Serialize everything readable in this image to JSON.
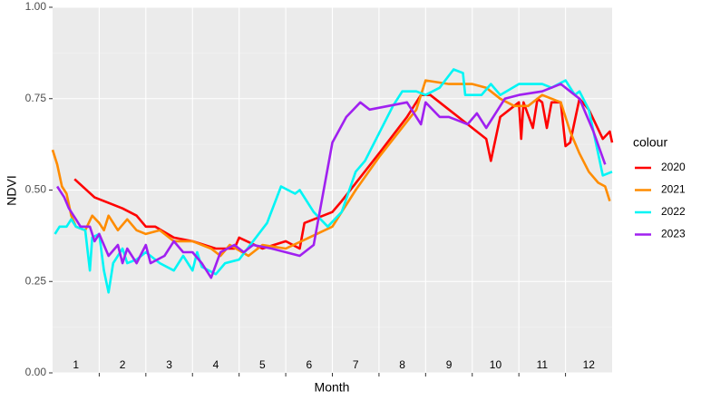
{
  "chart_data": {
    "type": "line",
    "x_label": "Month",
    "y_label": "NDVI",
    "legend_title": "colour",
    "legend_position": "right",
    "grid": true,
    "categories": [
      "1",
      "2",
      "3",
      "4",
      "5",
      "6",
      "7",
      "8",
      "9",
      "10",
      "11",
      "12"
    ],
    "xlim": [
      0,
      12
    ],
    "xticks": [
      1,
      2,
      3,
      4,
      5,
      6,
      7,
      8,
      9,
      10,
      11
    ],
    "ylim": [
      0,
      1
    ],
    "yticks": [
      {
        "value": 0,
        "label": "0.00"
      },
      {
        "value": 0.25,
        "label": "0.25"
      },
      {
        "value": 0.5,
        "label": "0.50"
      },
      {
        "value": 0.75,
        "label": "0.75"
      },
      {
        "value": 1,
        "label": "1.00"
      }
    ],
    "series": [
      {
        "name": "2020",
        "color": "#ff0000",
        "x": [
          0.47,
          0.9,
          1.5,
          1.8,
          2.0,
          2.2,
          2.6,
          3.0,
          3.5,
          3.9,
          4.0,
          4.5,
          5.0,
          5.3,
          5.4,
          6.0,
          6.2,
          7.0,
          7.6,
          7.9,
          8.1,
          8.5,
          9.3,
          9.4,
          9.6,
          9.9,
          10.0,
          10.05,
          10.1,
          10.3,
          10.4,
          10.5,
          10.6,
          10.7,
          10.9,
          11.0,
          11.1,
          11.3,
          11.5,
          11.8,
          11.95,
          12.0
        ],
        "values": [
          0.53,
          0.48,
          0.45,
          0.43,
          0.4,
          0.4,
          0.37,
          0.36,
          0.34,
          0.34,
          0.37,
          0.34,
          0.36,
          0.34,
          0.41,
          0.44,
          0.47,
          0.6,
          0.7,
          0.76,
          0.76,
          0.72,
          0.64,
          0.58,
          0.7,
          0.73,
          0.74,
          0.64,
          0.74,
          0.67,
          0.75,
          0.74,
          0.67,
          0.74,
          0.74,
          0.62,
          0.63,
          0.75,
          0.72,
          0.64,
          0.66,
          0.63
        ]
      },
      {
        "name": "2021",
        "color": "#ff8c00",
        "x": [
          0.0,
          0.1,
          0.2,
          0.3,
          0.4,
          0.5,
          0.7,
          0.85,
          1.0,
          1.1,
          1.2,
          1.4,
          1.6,
          1.8,
          2.0,
          2.3,
          2.6,
          3.0,
          3.4,
          3.6,
          3.8,
          4.2,
          4.5,
          5.0,
          5.5,
          6.0,
          6.5,
          7.0,
          7.8,
          8.0,
          8.5,
          9.0,
          9.3,
          9.6,
          9.9,
          10.2,
          10.5,
          10.9,
          11.1,
          11.3,
          11.5,
          11.7,
          11.85,
          11.95
        ],
        "values": [
          0.61,
          0.57,
          0.51,
          0.49,
          0.43,
          0.4,
          0.39,
          0.43,
          0.41,
          0.39,
          0.43,
          0.39,
          0.42,
          0.39,
          0.38,
          0.39,
          0.36,
          0.36,
          0.34,
          0.32,
          0.35,
          0.32,
          0.35,
          0.34,
          0.37,
          0.4,
          0.5,
          0.59,
          0.72,
          0.8,
          0.79,
          0.79,
          0.78,
          0.75,
          0.73,
          0.73,
          0.76,
          0.74,
          0.66,
          0.6,
          0.55,
          0.52,
          0.51,
          0.47
        ]
      },
      {
        "name": "2022",
        "color": "#00f5f5",
        "x": [
          0.05,
          0.15,
          0.3,
          0.4,
          0.5,
          0.7,
          0.8,
          0.85,
          1.0,
          1.1,
          1.2,
          1.3,
          1.5,
          1.6,
          1.8,
          2.0,
          2.3,
          2.6,
          2.8,
          3.0,
          3.1,
          3.2,
          3.5,
          3.7,
          4.0,
          4.3,
          4.6,
          4.9,
          5.2,
          5.3,
          5.6,
          5.9,
          6.2,
          6.5,
          6.7,
          7.3,
          7.5,
          7.8,
          8.0,
          8.3,
          8.6,
          8.8,
          8.85,
          9.2,
          9.4,
          9.6,
          10.0,
          10.5,
          10.7,
          11.0,
          11.2,
          11.3,
          11.5,
          11.7,
          11.8,
          12.0
        ],
        "values": [
          0.38,
          0.4,
          0.4,
          0.42,
          0.4,
          0.39,
          0.28,
          0.37,
          0.38,
          0.28,
          0.22,
          0.3,
          0.34,
          0.3,
          0.31,
          0.33,
          0.3,
          0.28,
          0.32,
          0.28,
          0.33,
          0.29,
          0.27,
          0.3,
          0.31,
          0.36,
          0.41,
          0.51,
          0.49,
          0.5,
          0.44,
          0.4,
          0.44,
          0.55,
          0.58,
          0.73,
          0.77,
          0.77,
          0.76,
          0.78,
          0.83,
          0.82,
          0.76,
          0.76,
          0.79,
          0.76,
          0.79,
          0.79,
          0.78,
          0.8,
          0.76,
          0.77,
          0.72,
          0.6,
          0.54,
          0.55
        ]
      },
      {
        "name": "2023",
        "color": "#a020f0",
        "x": [
          0.1,
          0.25,
          0.35,
          0.5,
          0.6,
          0.8,
          0.9,
          1.0,
          1.2,
          1.4,
          1.5,
          1.6,
          1.8,
          2.0,
          2.1,
          2.4,
          2.6,
          2.8,
          3.0,
          3.2,
          3.4,
          3.6,
          3.9,
          4.1,
          4.3,
          4.7,
          5.0,
          5.3,
          5.6,
          6.0,
          6.3,
          6.6,
          6.8,
          7.2,
          7.6,
          7.9,
          8.0,
          8.3,
          8.5,
          8.9,
          9.1,
          9.3,
          9.7,
          10.0,
          10.5,
          10.9,
          11.1,
          11.3,
          11.6,
          11.85
        ],
        "values": [
          0.51,
          0.48,
          0.45,
          0.42,
          0.4,
          0.4,
          0.36,
          0.38,
          0.32,
          0.35,
          0.3,
          0.34,
          0.3,
          0.35,
          0.3,
          0.32,
          0.36,
          0.33,
          0.33,
          0.3,
          0.26,
          0.33,
          0.35,
          0.33,
          0.35,
          0.34,
          0.33,
          0.32,
          0.35,
          0.63,
          0.7,
          0.74,
          0.72,
          0.73,
          0.74,
          0.68,
          0.74,
          0.7,
          0.7,
          0.68,
          0.71,
          0.67,
          0.75,
          0.76,
          0.77,
          0.79,
          0.77,
          0.75,
          0.66,
          0.57
        ]
      }
    ]
  }
}
